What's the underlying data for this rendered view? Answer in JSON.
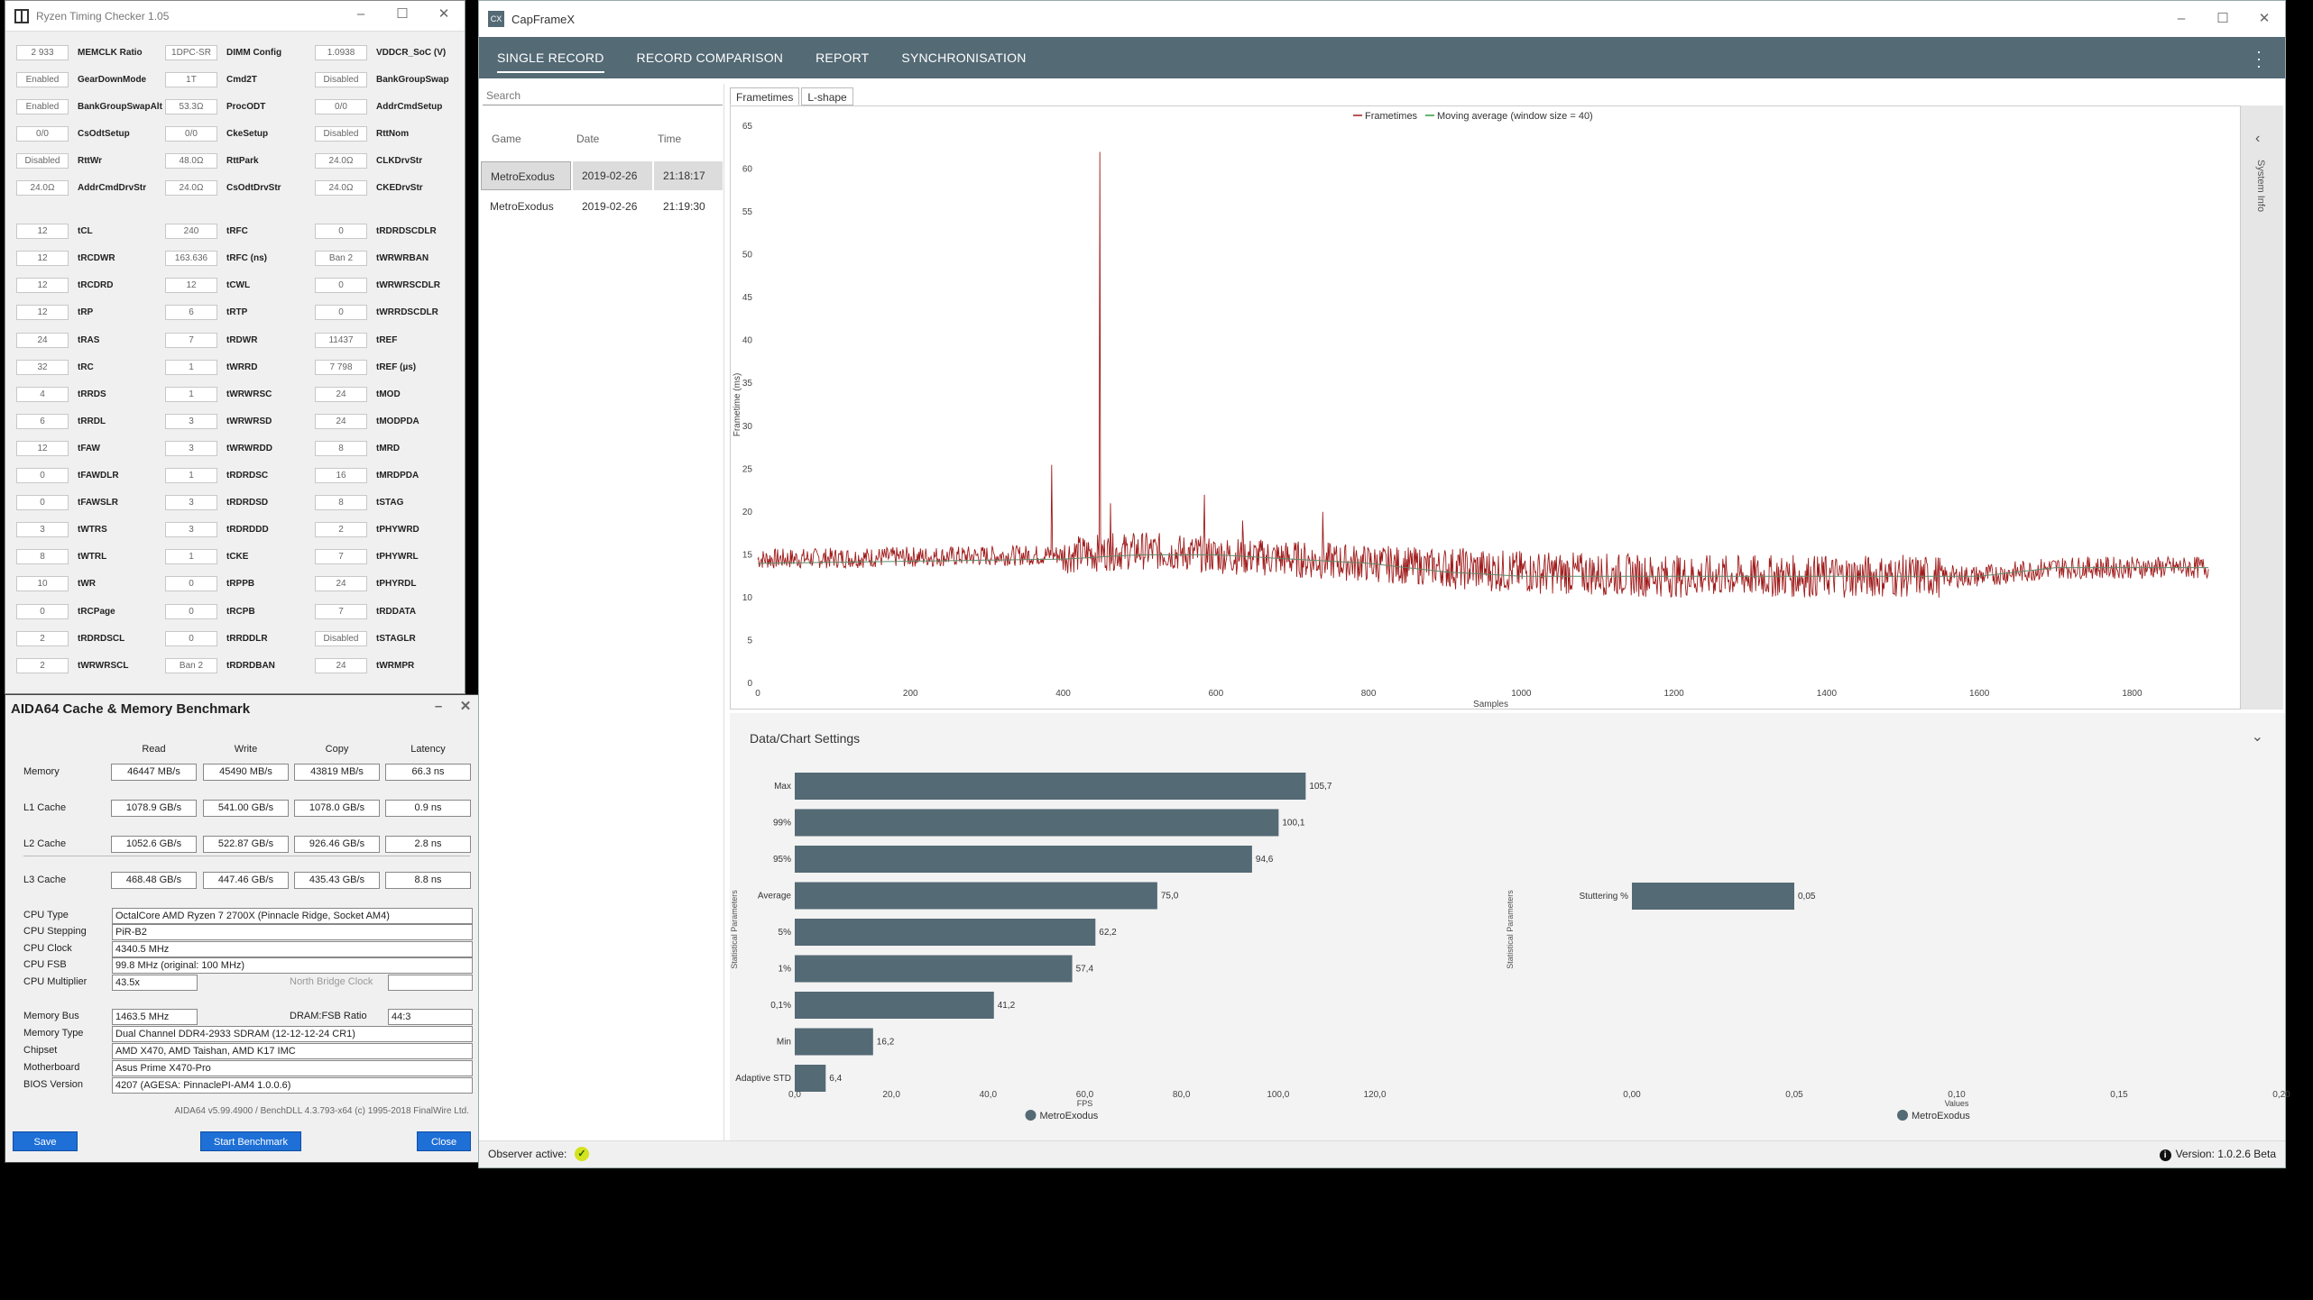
{
  "rtc": {
    "title": "Ryzen Timing Checker 1.05",
    "rows": [
      [
        "2 933",
        "MEMCLK Ratio",
        "1DPC-SR",
        "DIMM Config",
        "1.0938",
        "VDDCR_SoC (V)"
      ],
      [
        "Enabled",
        "GearDownMode",
        "1T",
        "Cmd2T",
        "Disabled",
        "BankGroupSwap"
      ],
      [
        "Enabled",
        "BankGroupSwapAlt",
        "53.3Ω",
        "ProcODT",
        "0/0",
        "AddrCmdSetup"
      ],
      [
        "0/0",
        "CsOdtSetup",
        "0/0",
        "CkeSetup",
        "Disabled",
        "RttNom"
      ],
      [
        "Disabled",
        "RttWr",
        "48.0Ω",
        "RttPark",
        "24.0Ω",
        "CLKDrvStr"
      ],
      [
        "24.0Ω",
        "AddrCmdDrvStr",
        "24.0Ω",
        "CsOdtDrvStr",
        "24.0Ω",
        "CKEDrvStr"
      ],
      [
        "12",
        "tCL",
        "240",
        "tRFC",
        "0",
        "tRDRDSCDLR"
      ],
      [
        "12",
        "tRCDWR",
        "163.636",
        "tRFC (ns)",
        "Ban 2",
        "tWRWRBAN"
      ],
      [
        "12",
        "tRCDRD",
        "12",
        "tCWL",
        "0",
        "tWRWRSCDLR"
      ],
      [
        "12",
        "tRP",
        "6",
        "tRTP",
        "0",
        "tWRRDSCDLR"
      ],
      [
        "24",
        "tRAS",
        "7",
        "tRDWR",
        "11437",
        "tREF"
      ],
      [
        "32",
        "tRC",
        "1",
        "tWRRD",
        "7 798",
        "tREF (µs)"
      ],
      [
        "4",
        "tRRDS",
        "1",
        "tWRWRSC",
        "24",
        "tMOD"
      ],
      [
        "6",
        "tRRDL",
        "3",
        "tWRWRSD",
        "24",
        "tMODPDA"
      ],
      [
        "12",
        "tFAW",
        "3",
        "tWRWRDD",
        "8",
        "tMRD"
      ],
      [
        "0",
        "tFAWDLR",
        "1",
        "tRDRDSC",
        "16",
        "tMRDPDA"
      ],
      [
        "0",
        "tFAWSLR",
        "3",
        "tRDRDSD",
        "8",
        "tSTAG"
      ],
      [
        "3",
        "tWTRS",
        "3",
        "tRDRDDD",
        "2",
        "tPHYWRD"
      ],
      [
        "8",
        "tWTRL",
        "1",
        "tCKE",
        "7",
        "tPHYWRL"
      ],
      [
        "10",
        "tWR",
        "0",
        "tRPPB",
        "24",
        "tPHYRDL"
      ],
      [
        "0",
        "tRCPage",
        "0",
        "tRCPB",
        "7",
        "tRDDATA"
      ],
      [
        "2",
        "tRDRDSCL",
        "0",
        "tRRDDLR",
        "Disabled",
        "tSTAGLR"
      ],
      [
        "2",
        "tWRWRSCL",
        "Ban 2",
        "tRDRDBAN",
        "24",
        "tWRMPR"
      ]
    ]
  },
  "aida": {
    "title": "AIDA64 Cache & Memory Benchmark",
    "cols": [
      "Read",
      "Write",
      "Copy",
      "Latency"
    ],
    "bench": [
      {
        "label": "Memory",
        "vals": [
          "46447 MB/s",
          "45490 MB/s",
          "43819 MB/s",
          "66.3 ns"
        ]
      },
      {
        "label": "L1 Cache",
        "vals": [
          "1078.9 GB/s",
          "541.00 GB/s",
          "1078.0 GB/s",
          "0.9 ns"
        ]
      },
      {
        "label": "L2 Cache",
        "vals": [
          "1052.6 GB/s",
          "522.87 GB/s",
          "926.46 GB/s",
          "2.8 ns"
        ]
      },
      {
        "label": "L3 Cache",
        "vals": [
          "468.48 GB/s",
          "447.46 GB/s",
          "435.43 GB/s",
          "8.8 ns"
        ]
      }
    ],
    "cpu_type_label": "CPU Type",
    "cpu_type": "OctalCore AMD Ryzen 7 2700X  (Pinnacle Ridge, Socket AM4)",
    "cpu_stepping_label": "CPU Stepping",
    "cpu_stepping": "PiR-B2",
    "cpu_clock_label": "CPU Clock",
    "cpu_clock": "4340.5 MHz",
    "cpu_fsb_label": "CPU FSB",
    "cpu_fsb": "99.8 MHz  (original: 100 MHz)",
    "cpu_mult_label": "CPU Multiplier",
    "cpu_mult": "43.5x",
    "nb_clock_label": "North Bridge Clock",
    "mem_bus_label": "Memory Bus",
    "mem_bus": "1463.5 MHz",
    "dram_ratio_label": "DRAM:FSB Ratio",
    "dram_ratio": "44:3",
    "mem_type_label": "Memory Type",
    "mem_type": "Dual Channel DDR4-2933 SDRAM  (12-12-12-24 CR1)",
    "chipset_label": "Chipset",
    "chipset": "AMD X470, AMD Taishan, AMD K17 IMC",
    "mobo_label": "Motherboard",
    "mobo": "Asus Prime X470-Pro",
    "bios_label": "BIOS Version",
    "bios": "4207  (AGESA: PinnaclePI-AM4 1.0.0.6)",
    "footer": "AIDA64 v5.99.4900 / BenchDLL 4.3.793-x64  (c) 1995-2018 FinalWire Ltd.",
    "save": "Save",
    "start": "Start Benchmark",
    "close": "Close"
  },
  "cfx": {
    "title": "CapFrameX",
    "icon": "CX",
    "tabs": [
      "SINGLE RECORD",
      "RECORD COMPARISON",
      "REPORT",
      "SYNCHRONISATION"
    ],
    "search_placeholder": "Search",
    "grid_headers": [
      "Game",
      "Date",
      "Time"
    ],
    "records": [
      {
        "game": "MetroExodus",
        "date": "2019-02-26",
        "time": "21:18:17"
      },
      {
        "game": "MetroExodus",
        "date": "2019-02-26",
        "time": "21:19:30"
      }
    ],
    "chart_tabs": [
      "Frametimes",
      "L-shape"
    ],
    "system_info": "System Info",
    "settings_title": "Data/Chart Settings",
    "observer": "Observer active:",
    "version": "Version: 1.0.2.6 Beta",
    "colors": {
      "nav": "#546a75",
      "bar": "#546a75",
      "frametime": "#a01c1c",
      "moving_avg": "#2e9e3e"
    }
  },
  "chart_data": [
    {
      "type": "line",
      "title": "",
      "xlabel": "Samples",
      "ylabel": "Frametime (ms)",
      "xlim": [
        0,
        1920
      ],
      "ylim": [
        0,
        65
      ],
      "xticks": [
        0,
        200,
        400,
        600,
        800,
        1000,
        1200,
        1400,
        1600,
        1800
      ],
      "yticks": [
        0,
        5,
        10,
        15,
        20,
        25,
        30,
        35,
        40,
        45,
        50,
        55,
        60,
        65
      ],
      "legend": "top-center",
      "series": [
        {
          "name": "Frametimes",
          "baseline": [
            [
              0,
              14.5
            ],
            [
              400,
              15
            ],
            [
              500,
              15.5
            ],
            [
              600,
              15
            ],
            [
              800,
              14
            ],
            [
              900,
              13.5
            ],
            [
              1000,
              13
            ],
            [
              1200,
              12.5
            ],
            [
              1400,
              12.5
            ],
            [
              1600,
              12.5
            ],
            [
              1700,
              13.5
            ],
            [
              1920,
              13.5
            ]
          ],
          "spikes": [
            [
              385,
              25.5
            ],
            [
              448,
              62
            ],
            [
              462,
              21
            ],
            [
              585,
              22
            ],
            [
              635,
              19
            ],
            [
              740,
              20
            ]
          ]
        },
        {
          "name": "Moving average (window size = 40)",
          "baseline": [
            [
              0,
              14
            ],
            [
              400,
              14.5
            ],
            [
              500,
              15
            ],
            [
              600,
              15
            ],
            [
              800,
              14
            ],
            [
              900,
              13
            ],
            [
              1000,
              12.5
            ],
            [
              1200,
              12.5
            ],
            [
              1400,
              12.5
            ],
            [
              1600,
              12.5
            ],
            [
              1700,
              13.5
            ],
            [
              1920,
              13.5
            ]
          ]
        }
      ]
    },
    {
      "type": "bar",
      "orientation": "horizontal",
      "ylabel": "Statistical Parameters",
      "xlabel": "FPS",
      "xlim": [
        0,
        120
      ],
      "xticks": [
        "0,0",
        "20,0",
        "40,0",
        "60,0",
        "80,0",
        "100,0",
        "120,0"
      ],
      "categories": [
        "Max",
        "99%",
        "95%",
        "Average",
        "5%",
        "1%",
        "0,1%",
        "Min",
        "Adaptive STD"
      ],
      "values": [
        105.7,
        100.1,
        94.6,
        75.0,
        62.2,
        57.4,
        41.2,
        16.2,
        6.4
      ],
      "labels": [
        "105,7",
        "100,1",
        "94,6",
        "75,0",
        "62,2",
        "57,4",
        "41,2",
        "16,2",
        "6,4"
      ],
      "legend": "MetroExodus"
    },
    {
      "type": "bar",
      "orientation": "horizontal",
      "ylabel": "Statistical Parameters",
      "xlabel": "Values",
      "xlim": [
        0,
        0.2
      ],
      "xticks": [
        "0,00",
        "0,05",
        "0,10",
        "0,15",
        "0,20"
      ],
      "categories": [
        "Stuttering %"
      ],
      "values": [
        0.05
      ],
      "labels": [
        "0,05"
      ],
      "legend": "MetroExodus"
    }
  ]
}
